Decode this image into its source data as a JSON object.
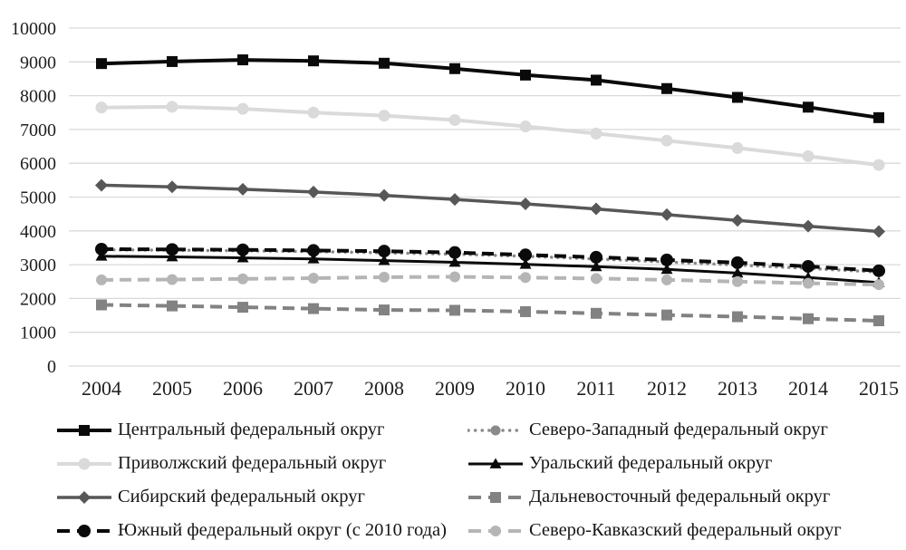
{
  "chart_data": {
    "type": "line",
    "title": "",
    "xlabel": "",
    "ylabel": "",
    "x_categories": [
      "2004",
      "2005",
      "2006",
      "2007",
      "2008",
      "2009",
      "2010",
      "2011",
      "2012",
      "2013",
      "2014",
      "2015"
    ],
    "y_tick_labels": [
      "0",
      "1000",
      "2000",
      "3000",
      "4000",
      "5000",
      "6000",
      "7000",
      "8000",
      "9000",
      "10000"
    ],
    "ylim": [
      0,
      10000
    ],
    "grid": "horizontal",
    "legend_position": "bottom",
    "legend_columns": 2,
    "series": [
      {
        "id": "central",
        "name": "Центральный федеральный округ",
        "values": [
          8950,
          9010,
          9060,
          9030,
          8960,
          8800,
          8610,
          8460,
          8210,
          7950,
          7660,
          7350
        ],
        "color": "#0a0a0a",
        "marker": "square",
        "marker_size": 6,
        "line_style": "solid",
        "line_width": 4
      },
      {
        "id": "northwestern",
        "name": "Северо-Западный федеральный округ",
        "values": [
          3440,
          3430,
          3410,
          3390,
          3350,
          3310,
          3250,
          3170,
          3080,
          2990,
          2890,
          2780
        ],
        "color": "#8a8a8a",
        "marker": "circle",
        "marker_size": 5,
        "line_style": "dotted",
        "line_width": 3.5
      },
      {
        "id": "volga",
        "name": "Приволжский федеральный округ",
        "values": [
          7650,
          7670,
          7610,
          7500,
          7410,
          7280,
          7090,
          6880,
          6670,
          6450,
          6210,
          5950
        ],
        "color": "#dadada",
        "marker": "circle",
        "marker_size": 6.5,
        "line_style": "solid",
        "line_width": 4
      },
      {
        "id": "ural",
        "name": "Уральский федеральный округ",
        "values": [
          3250,
          3230,
          3200,
          3170,
          3120,
          3070,
          3010,
          2940,
          2860,
          2750,
          2620,
          2470
        ],
        "color": "#0a0a0a",
        "marker": "triangle",
        "marker_size": 6.5,
        "line_style": "solid",
        "line_width": 3
      },
      {
        "id": "siberian",
        "name": "Сибирский федеральный округ",
        "values": [
          5350,
          5300,
          5230,
          5150,
          5050,
          4930,
          4800,
          4650,
          4480,
          4310,
          4140,
          3980
        ],
        "color": "#575757",
        "marker": "diamond",
        "marker_size": 6,
        "line_style": "solid",
        "line_width": 3.5
      },
      {
        "id": "fareastern",
        "name": "Дальневосточный федеральный округ",
        "values": [
          1810,
          1780,
          1740,
          1700,
          1660,
          1650,
          1610,
          1560,
          1510,
          1460,
          1400,
          1340
        ],
        "color": "#828282",
        "marker": "square",
        "marker_size": 6,
        "line_style": "dashed",
        "line_width": 4
      },
      {
        "id": "southern",
        "name": "Южный федеральный округ (с 2010 года)",
        "values": [
          3460,
          3450,
          3440,
          3420,
          3400,
          3360,
          3290,
          3220,
          3140,
          3060,
          2950,
          2820
        ],
        "color": "#0a0a0a",
        "marker": "circle",
        "marker_size": 7,
        "line_style": "dashed",
        "line_width": 4
      },
      {
        "id": "northcaucasian",
        "name": "Северо-Кавказский федеральный округ",
        "values": [
          2550,
          2560,
          2580,
          2600,
          2630,
          2640,
          2620,
          2590,
          2550,
          2500,
          2450,
          2410
        ],
        "color": "#b5b5b5",
        "marker": "circle",
        "marker_size": 6,
        "line_style": "dashed",
        "line_width": 4
      }
    ]
  },
  "colors": {
    "background": "#ffffff",
    "gridline": "#d9d9d9",
    "axis_text": "#1f1f1f",
    "legend_text": "#161616"
  }
}
